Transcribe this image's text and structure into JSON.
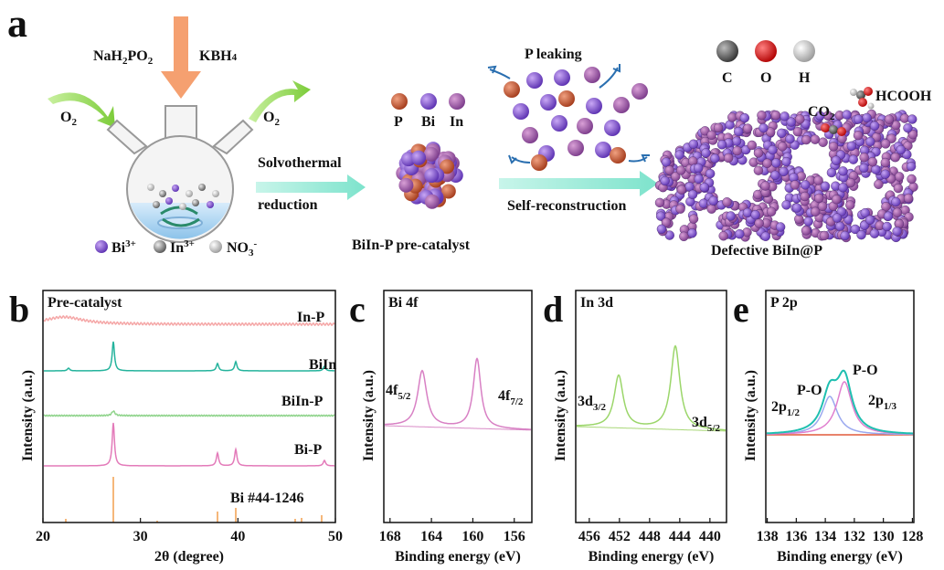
{
  "panel_a": {
    "letter": "a",
    "reagent_left": [
      "NaH",
      "2",
      "PO",
      "2"
    ],
    "reagent_right": [
      "KBH",
      "4"
    ],
    "o2_left": [
      "O",
      "2"
    ],
    "o2_right": [
      "O",
      "2"
    ],
    "step1": [
      "Solvothermal",
      "reduction"
    ],
    "ions": {
      "bi": [
        "Bi",
        "3+"
      ],
      "in": [
        "In",
        "3+"
      ],
      "no3": [
        "NO",
        "3",
        "-"
      ]
    },
    "atoms": [
      "P",
      "Bi",
      "In"
    ],
    "precatalyst": "BiIn-P pre-catalyst",
    "leaking": "P leaking",
    "step2": "Self-reconstruction",
    "elements": [
      "C",
      "O",
      "H"
    ],
    "co2": [
      "CO",
      "2"
    ],
    "hcooh": "HCOOH",
    "product": "Defective BiIn@P"
  },
  "panels": [
    {
      "letter": "b",
      "title": "Pre-catalyst",
      "xlabel": "2θ (degree)",
      "ylabel": "Intensity (a.u.)",
      "xlim": [
        20,
        50
      ],
      "xticks": [
        20,
        30,
        40,
        50
      ],
      "labels": [
        "In-P",
        "BiIn",
        "BiIn-P",
        "Bi-P",
        "Bi  #44-1246"
      ]
    },
    {
      "letter": "c",
      "title": "Bi 4f",
      "xlabel": "Binding energy (eV)",
      "ylabel": "Intensity (a.u.)",
      "xlim": [
        168.6,
        154.3
      ],
      "xticks": [
        168,
        164,
        160,
        156
      ],
      "labels": [
        [
          "4f",
          "5/2"
        ],
        [
          "4f",
          "7/2"
        ]
      ]
    },
    {
      "letter": "d",
      "title": "In 3d",
      "xlabel": "Binding energy (eV)",
      "ylabel": "Intensity (a.u.)",
      "xlim": [
        457.8,
        437.8
      ],
      "xticks": [
        456,
        452,
        448,
        444,
        440
      ],
      "labels": [
        [
          "3d",
          "3/2"
        ],
        [
          "3d",
          "5/2"
        ]
      ]
    },
    {
      "letter": "e",
      "title": "P 2p",
      "xlabel": "Binding energy (eV)",
      "ylabel": "Intensity (a.u.)",
      "xlim": [
        138.1,
        127.9
      ],
      "xticks": [
        138,
        136,
        134,
        132,
        130,
        128
      ],
      "labels": [
        "P-O",
        "P-O",
        [
          "2p",
          "1/2"
        ],
        [
          "2p",
          "1/3"
        ]
      ]
    }
  ]
}
